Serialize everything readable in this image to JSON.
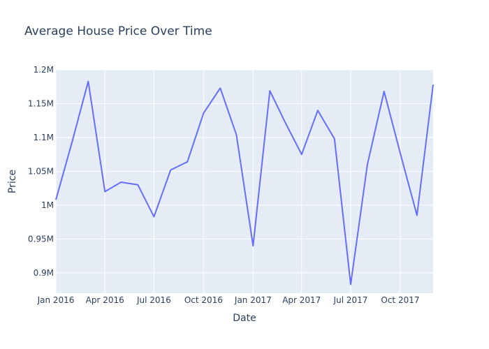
{
  "chart_data": {
    "type": "line",
    "title": "Average House Price Over Time",
    "xlabel": "Date",
    "ylabel": "Price",
    "ylim": [
      870000,
      1200000
    ],
    "xlim": [
      "2016-01-01",
      "2017-12-01"
    ],
    "grid": true,
    "line_color": "#636efa",
    "plot_bg": "#e5ecf6",
    "x_ticks": [
      {
        "date": "2016-01-01",
        "label": "Jan 2016"
      },
      {
        "date": "2016-04-01",
        "label": "Apr 2016"
      },
      {
        "date": "2016-07-01",
        "label": "Jul 2016"
      },
      {
        "date": "2016-10-01",
        "label": "Oct 2016"
      },
      {
        "date": "2017-01-01",
        "label": "Jan 2017"
      },
      {
        "date": "2017-04-01",
        "label": "Apr 2017"
      },
      {
        "date": "2017-07-01",
        "label": "Jul 2017"
      },
      {
        "date": "2017-10-01",
        "label": "Oct 2017"
      }
    ],
    "y_ticks": [
      {
        "value": 900000,
        "label": "0.9M"
      },
      {
        "value": 950000,
        "label": "0.95M"
      },
      {
        "value": 1000000,
        "label": "1M"
      },
      {
        "value": 1050000,
        "label": "1.05M"
      },
      {
        "value": 1100000,
        "label": "1.1M"
      },
      {
        "value": 1150000,
        "label": "1.15M"
      },
      {
        "value": 1200000,
        "label": "1.2M"
      }
    ],
    "series": [
      {
        "points": [
          {
            "x": "2016-01-01",
            "y": 1008000
          },
          {
            "x": "2016-02-01",
            "y": 1096000
          },
          {
            "x": "2016-03-01",
            "y": 1183000
          },
          {
            "x": "2016-04-01",
            "y": 1020000
          },
          {
            "x": "2016-05-01",
            "y": 1034000
          },
          {
            "x": "2016-06-01",
            "y": 1030000
          },
          {
            "x": "2016-07-01",
            "y": 983000
          },
          {
            "x": "2016-08-01",
            "y": 1052000
          },
          {
            "x": "2016-09-01",
            "y": 1064000
          },
          {
            "x": "2016-10-01",
            "y": 1136000
          },
          {
            "x": "2016-11-01",
            "y": 1173000
          },
          {
            "x": "2016-12-01",
            "y": 1104000
          },
          {
            "x": "2017-01-01",
            "y": 940000
          },
          {
            "x": "2017-02-01",
            "y": 1169000
          },
          {
            "x": "2017-03-01",
            "y": 1123000
          },
          {
            "x": "2017-04-01",
            "y": 1075000
          },
          {
            "x": "2017-05-01",
            "y": 1140000
          },
          {
            "x": "2017-06-01",
            "y": 1098000
          },
          {
            "x": "2017-07-01",
            "y": 883000
          },
          {
            "x": "2017-08-01",
            "y": 1060000
          },
          {
            "x": "2017-09-01",
            "y": 1168000
          },
          {
            "x": "2017-10-01",
            "y": 1077000
          },
          {
            "x": "2017-11-01",
            "y": 985000
          },
          {
            "x": "2017-12-01",
            "y": 1178000
          }
        ]
      }
    ]
  }
}
